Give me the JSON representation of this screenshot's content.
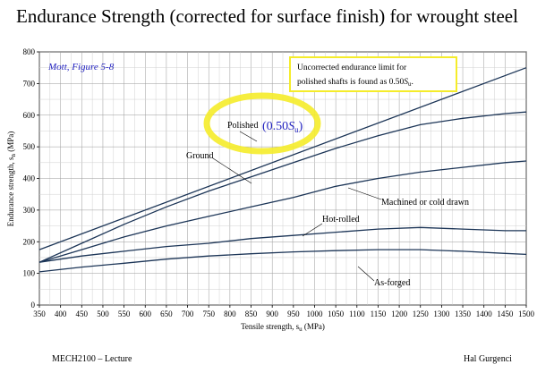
{
  "slide": {
    "title": "Endurance Strength (corrected for surface finish) for wrought steel",
    "footer_left": "MECH2100 – Lecture",
    "footer_right": "Hal Gurgenci"
  },
  "chart_data": {
    "type": "line",
    "xlabel": "Tensile strength, s",
    "xlabel_sub": "u",
    "xlabel_unit": " (MPa)",
    "ylabel": "Endurance strength, s",
    "ylabel_sub": "n",
    "ylabel_unit": " (MPa)",
    "xlim": [
      350,
      1500
    ],
    "ylim": [
      0,
      800
    ],
    "xticks": [
      350,
      400,
      450,
      500,
      550,
      600,
      650,
      700,
      750,
      800,
      850,
      900,
      950,
      1000,
      1050,
      1100,
      1150,
      1200,
      1250,
      1300,
      1350,
      1400,
      1450,
      1500
    ],
    "yticks": [
      0,
      100,
      200,
      300,
      400,
      500,
      600,
      700,
      800
    ],
    "grid": true,
    "source_note": "Mott, Figure 5-8",
    "callout_line1": "Uncorrected endurance limit for",
    "callout_line2": "polished shafts is found as 0.50",
    "callout_line2_var": "S",
    "callout_line2_sub": "u",
    "callout_line2_end": ".",
    "highlight_color": "#f5ec2a",
    "callout_border": "#f5ec2a",
    "note_color": "#1f1fbf",
    "series": [
      {
        "name": "Polished",
        "label_extra": "(0.50",
        "label_var": "S",
        "label_sub": "u",
        "label_close": ")",
        "x": [
          350,
          1500
        ],
        "y": [
          175,
          750
        ]
      },
      {
        "name": "Ground",
        "x": [
          350,
          450,
          550,
          650,
          750,
          850,
          950,
          1050,
          1150,
          1250,
          1350,
          1450,
          1500
        ],
        "y": [
          135,
          195,
          255,
          310,
          360,
          405,
          450,
          495,
          535,
          570,
          590,
          605,
          610
        ]
      },
      {
        "name": "Machined or cold drawn",
        "x": [
          350,
          450,
          550,
          650,
          750,
          850,
          950,
          1050,
          1150,
          1250,
          1350,
          1450,
          1500
        ],
        "y": [
          135,
          175,
          215,
          250,
          280,
          310,
          340,
          375,
          400,
          420,
          435,
          450,
          455
        ]
      },
      {
        "name": "Hot-rolled",
        "x": [
          350,
          450,
          550,
          650,
          750,
          850,
          950,
          1050,
          1150,
          1250,
          1350,
          1450,
          1500
        ],
        "y": [
          135,
          155,
          170,
          185,
          195,
          210,
          220,
          230,
          240,
          245,
          240,
          235,
          235
        ]
      },
      {
        "name": "As-forged",
        "x": [
          350,
          450,
          550,
          650,
          750,
          850,
          950,
          1050,
          1150,
          1250,
          1350,
          1450,
          1500
        ],
        "y": [
          105,
          120,
          132,
          145,
          155,
          162,
          168,
          172,
          175,
          175,
          170,
          163,
          160
        ]
      }
    ]
  }
}
